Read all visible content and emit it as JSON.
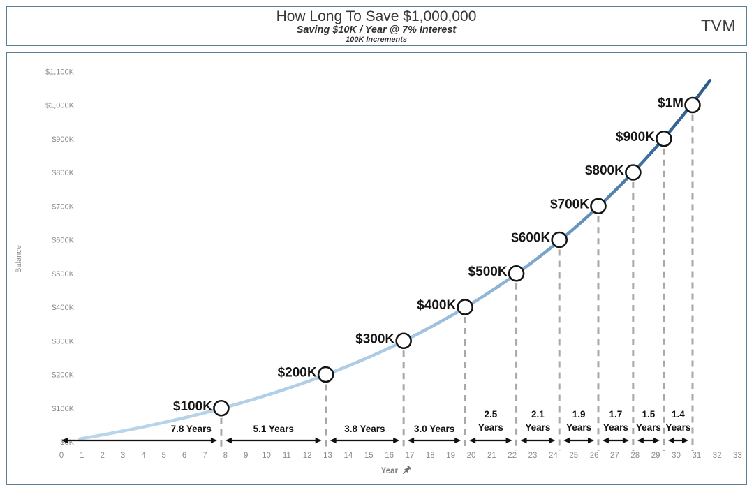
{
  "header": {
    "title": "How Long To Save $1,000,000",
    "subtitle": "Saving $10K / Year @ 7% Interest",
    "subtitle2": "100K Increments",
    "brand": "TVM"
  },
  "chart_data": {
    "type": "line",
    "title": "How Long To Save $1,000,000",
    "xlabel": "Year",
    "ylabel": "Balance",
    "xlim": [
      0,
      33
    ],
    "ylim_k": [
      0,
      1100
    ],
    "grid": false,
    "legend": "none",
    "x_ticks": [
      0,
      1,
      2,
      3,
      4,
      5,
      6,
      7,
      8,
      9,
      10,
      11,
      12,
      13,
      14,
      15,
      16,
      17,
      18,
      19,
      20,
      21,
      22,
      23,
      24,
      25,
      26,
      27,
      28,
      29,
      30,
      31,
      32,
      33
    ],
    "y_tick_labels": [
      "$0K",
      "$100K",
      "$200K",
      "$300K",
      "$400K",
      "$500K",
      "$600K",
      "$700K",
      "$800K",
      "$900K",
      "$1,000K",
      "$1,100K"
    ],
    "savings_per_year_k": 10,
    "interest_rate": 0.07,
    "curve_t_start": 0.9,
    "curve_t_end": 31.75,
    "milestones": [
      {
        "label": "$100K",
        "balance_k": 100,
        "year": 7.8
      },
      {
        "label": "$200K",
        "balance_k": 200,
        "year": 12.9
      },
      {
        "label": "$300K",
        "balance_k": 300,
        "year": 16.7
      },
      {
        "label": "$400K",
        "balance_k": 400,
        "year": 19.7
      },
      {
        "label": "$500K",
        "balance_k": 500,
        "year": 22.2
      },
      {
        "label": "$600K",
        "balance_k": 600,
        "year": 24.3
      },
      {
        "label": "$700K",
        "balance_k": 700,
        "year": 26.2
      },
      {
        "label": "$800K",
        "balance_k": 800,
        "year": 27.9
      },
      {
        "label": "$900K",
        "balance_k": 900,
        "year": 29.4
      },
      {
        "label": "$1M",
        "balance_k": 1000,
        "year": 30.8
      }
    ],
    "intervals": [
      {
        "label": "7.8 Years",
        "wrap": false,
        "align": "end"
      },
      {
        "label": "5.1 Years",
        "wrap": false,
        "align": "middle"
      },
      {
        "label": "3.8 Years",
        "wrap": false,
        "align": "middle"
      },
      {
        "label": "3.0 Years",
        "wrap": false,
        "align": "middle"
      },
      {
        "label": "2.5 Years",
        "wrap": true,
        "align": "middle"
      },
      {
        "label": "2.1 Years",
        "wrap": true,
        "align": "middle"
      },
      {
        "label": "1.9 Years",
        "wrap": true,
        "align": "middle"
      },
      {
        "label": "1.7 Years",
        "wrap": true,
        "align": "middle"
      },
      {
        "label": "1.5 Years",
        "wrap": true,
        "align": "middle"
      },
      {
        "label": "1.4 Years",
        "wrap": true,
        "align": "middle"
      }
    ],
    "colors": {
      "curve_start": "#bcd7ec",
      "curve_mid": "#8aafd2",
      "curve_end": "#2b5a8c",
      "dashed_line": "#a8a8a8",
      "arrow": "#111111",
      "marker_stroke": "#151515",
      "marker_fill": "#ffffff",
      "axis_text": "#8c8c8c",
      "milestone_text": "#151515",
      "frame_border": "#5a8096",
      "pin_icon": "#6e6e6e"
    }
  }
}
